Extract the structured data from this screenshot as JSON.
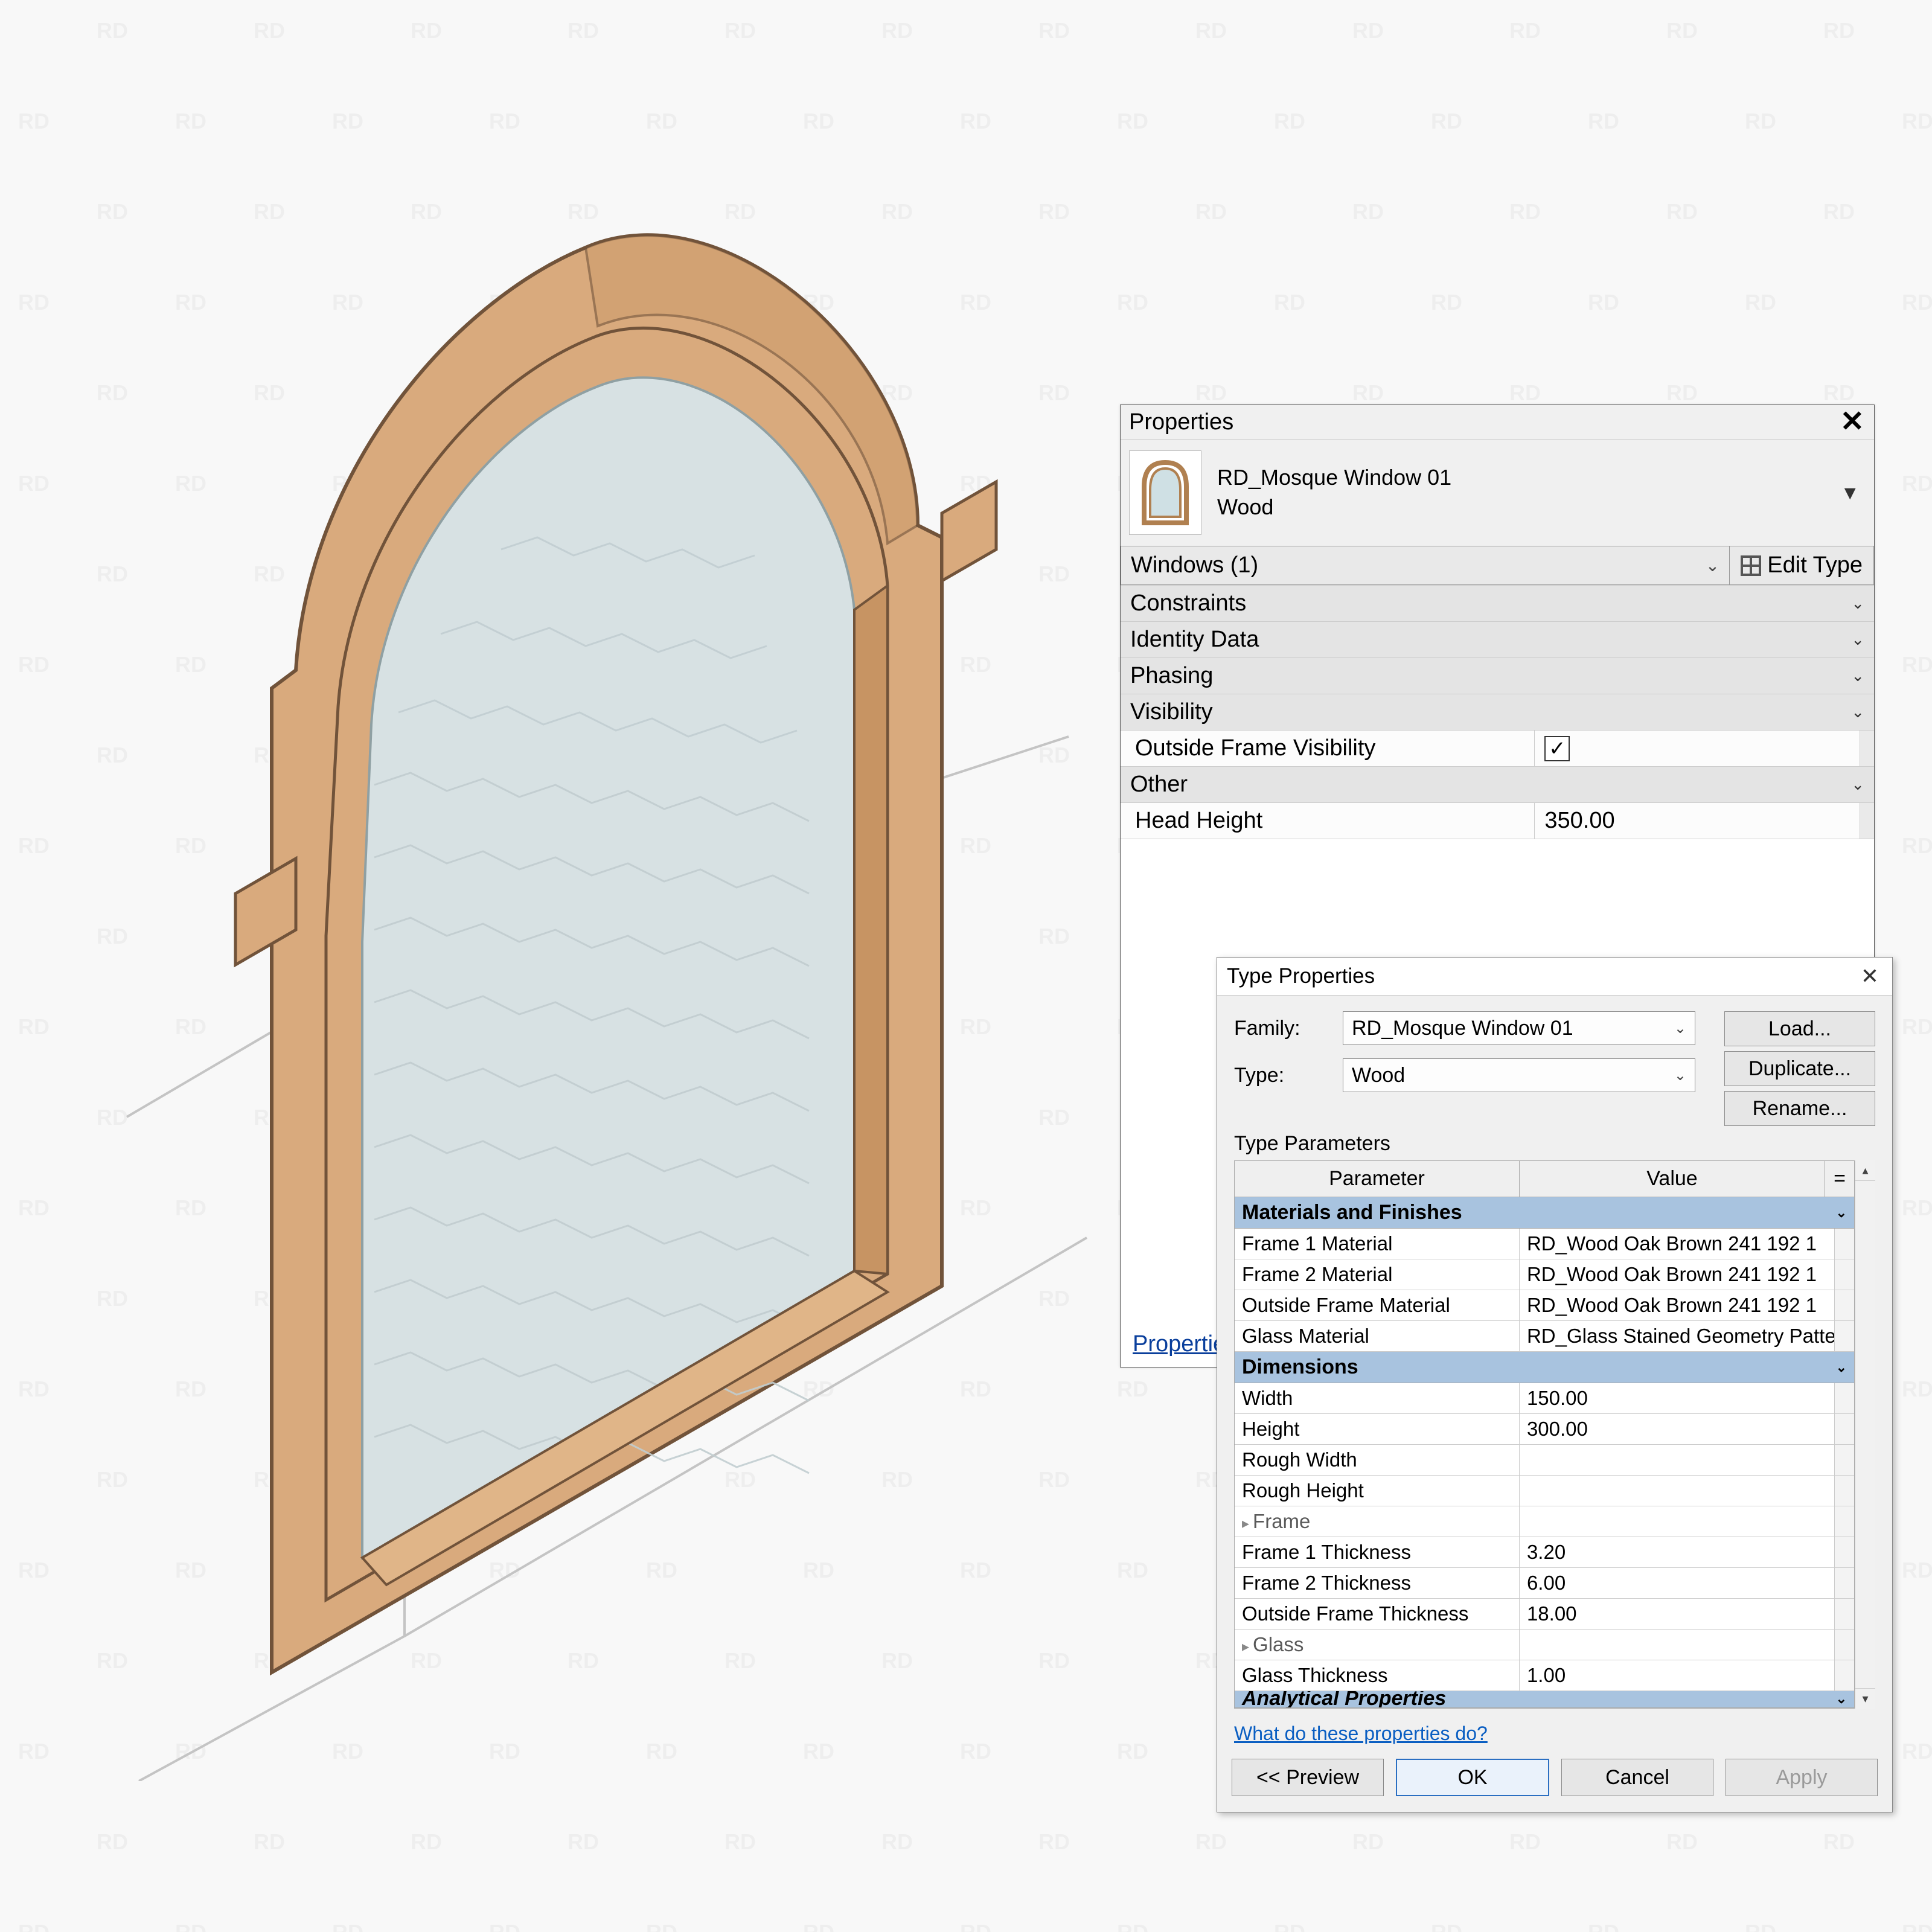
{
  "watermark_text": "RD",
  "viewport": {
    "frame_fill": "#d8a97b",
    "frame_stroke": "#6b4a2b",
    "glass_fill": "#d7e2e4",
    "glass_stroke": "#9aa8ab",
    "wall_stroke": "#b8b8b8",
    "wall_fill": "#f2f2f2"
  },
  "properties": {
    "title": "Properties",
    "type_name": "RD_Mosque Window 01",
    "type_sub": "Wood",
    "selector": "Windows (1)",
    "edit_type_label": "Edit Type",
    "sections": [
      {
        "label": "Constraints",
        "collapsed": true
      },
      {
        "label": "Identity Data",
        "collapsed": true
      },
      {
        "label": "Phasing",
        "collapsed": true
      }
    ],
    "visibility_section": "Visibility",
    "visibility_param": "Outside Frame Visibility",
    "visibility_checked": true,
    "other_section": "Other",
    "other_param": "Head Height",
    "other_value": "350.00",
    "help_link": "Properties help",
    "help_link_short": "Propertie"
  },
  "type_dialog": {
    "title": "Type Properties",
    "family_label": "Family:",
    "family_value": "RD_Mosque Window 01",
    "type_label": "Type:",
    "type_value": "Wood",
    "load_btn": "Load...",
    "duplicate_btn": "Duplicate...",
    "rename_btn": "Rename...",
    "tp_label": "Type Parameters",
    "col_param": "Parameter",
    "col_value": "Value",
    "col_eq": "=",
    "categories": [
      {
        "name": "Materials and Finishes",
        "rows": [
          {
            "p": "Frame 1 Material",
            "v": "RD_Wood Oak Brown 241 192 1"
          },
          {
            "p": "Frame 2 Material",
            "v": "RD_Wood Oak Brown 241 192 1"
          },
          {
            "p": "Outside Frame Material",
            "v": "RD_Wood Oak Brown 241 192 1"
          },
          {
            "p": "Glass Material",
            "v": "RD_Glass Stained Geometry Patte"
          }
        ]
      },
      {
        "name": "Dimensions",
        "rows": [
          {
            "p": "Width",
            "v": "150.00"
          },
          {
            "p": "Height",
            "v": "300.00"
          },
          {
            "p": "Rough Width",
            "v": ""
          },
          {
            "p": "Rough Height",
            "v": ""
          },
          {
            "p": "Frame",
            "v": "",
            "sub": true
          },
          {
            "p": "Frame 1 Thickness",
            "v": "3.20"
          },
          {
            "p": "Frame  2 Thickness",
            "v": "6.00"
          },
          {
            "p": "Outside Frame Thickness",
            "v": "18.00"
          },
          {
            "p": "Glass",
            "v": "",
            "sub": true
          },
          {
            "p": "Glass Thickness",
            "v": "1.00"
          }
        ]
      }
    ],
    "truncated_category": "Analytical Properties",
    "help_link": "What do these properties do?",
    "preview_btn": "<<  Preview",
    "ok_btn": "OK",
    "cancel_btn": "Cancel",
    "apply_btn": "Apply"
  }
}
